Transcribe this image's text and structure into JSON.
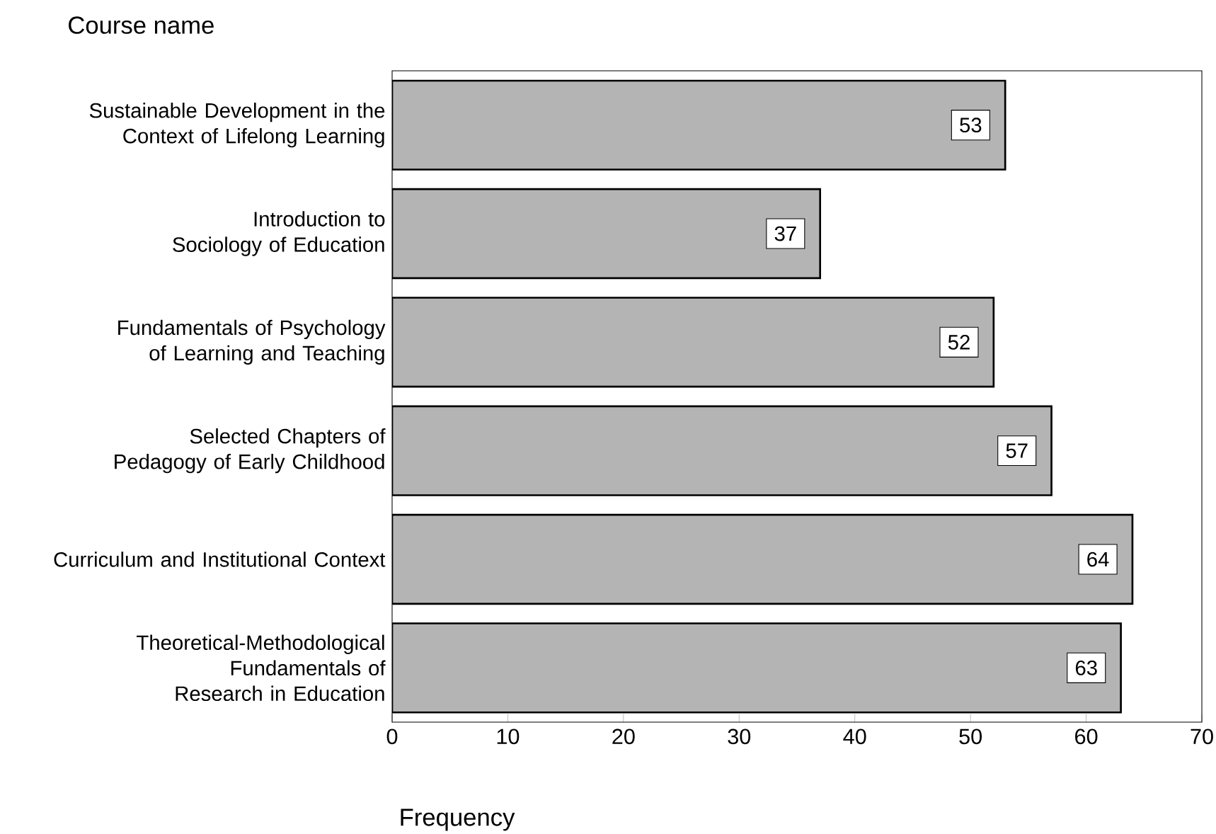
{
  "chart_data": {
    "type": "bar",
    "orientation": "horizontal",
    "xlabel": "Frequency",
    "ylabel": "Course name",
    "categories": [
      "Sustainable Development in the Context of Lifelong Learning",
      "Introduction to Sociology of Education",
      "Fundamentals of Psychology of Learning and Teaching",
      "Selected Chapters of Pedagogy of Early Childhood",
      "Curriculum and Institutional Context",
      "Theoretical-Methodological Fundamentals of Research in Education"
    ],
    "values": [
      53,
      37,
      52,
      57,
      64,
      63
    ],
    "color": "#b4b4b4",
    "xlim": [
      0,
      70
    ],
    "xticks": [
      0,
      10,
      20,
      30,
      40,
      50,
      60,
      70
    ],
    "data_labels": true
  }
}
